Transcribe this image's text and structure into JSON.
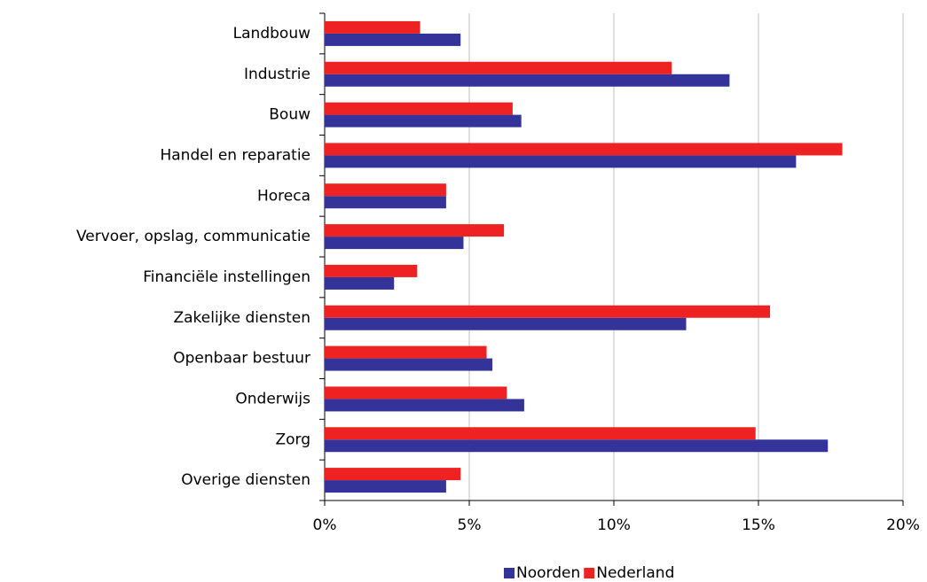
{
  "chart_data": {
    "type": "bar",
    "orientation": "horizontal",
    "categories": [
      "Landbouw",
      "Industrie",
      "Bouw",
      "Handel en reparatie",
      "Horeca",
      "Vervoer, opslag, communicatie",
      "Financiële instellingen",
      "Zakelijke diensten",
      "Openbaar bestuur",
      "Onderwijs",
      "Zorg",
      "Overige diensten"
    ],
    "series": [
      {
        "name": "Noorden",
        "color": "#333399",
        "values": [
          4.7,
          14.0,
          6.8,
          16.3,
          4.2,
          4.8,
          2.4,
          12.5,
          5.8,
          6.9,
          17.4,
          4.2
        ]
      },
      {
        "name": "Nederland",
        "color": "#ee2222",
        "values": [
          3.3,
          12.0,
          6.5,
          17.9,
          4.2,
          6.2,
          3.2,
          15.4,
          5.6,
          6.3,
          14.9,
          4.7
        ]
      }
    ],
    "xlim": [
      0,
      20
    ],
    "xticks": [
      {
        "value": 0,
        "label": "0%"
      },
      {
        "value": 5,
        "label": "5%"
      },
      {
        "value": 10,
        "label": "10%"
      },
      {
        "value": 15,
        "label": "15%"
      },
      {
        "value": 20,
        "label": "20%"
      }
    ],
    "grid": true,
    "legend": "bottom"
  }
}
